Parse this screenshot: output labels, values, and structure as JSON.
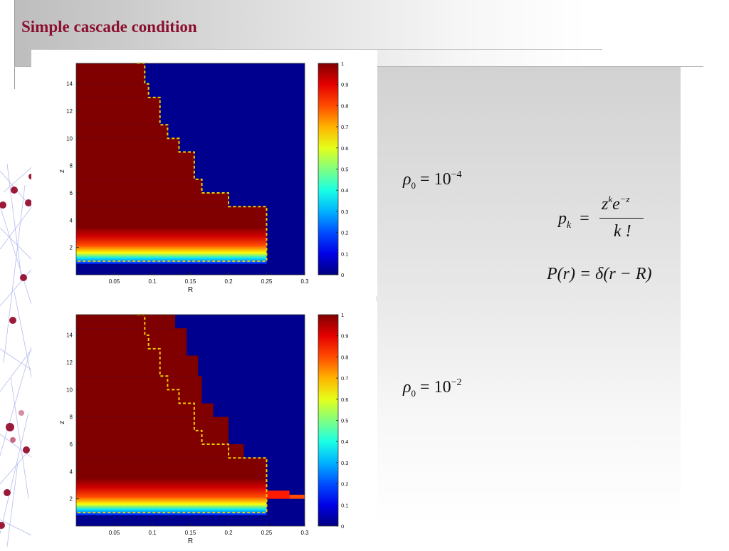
{
  "slide": {
    "title": "Simple cascade condition"
  },
  "equations": {
    "rho_top": {
      "symbol": "ρ",
      "sub": "0",
      "eq": "=",
      "base": "10",
      "exp": "−4"
    },
    "rho_bottom": {
      "symbol": "ρ",
      "sub": "0",
      "eq": "=",
      "base": "10",
      "exp": "−2"
    },
    "pk": {
      "lhs": "p",
      "lhs_sub": "k",
      "eq": "=",
      "numerator_z": "z",
      "numerator_k": "k",
      "numerator_e": "e",
      "numerator_exp": "−z",
      "denominator": "k !"
    },
    "pr": {
      "text": "P(r) = δ(r − R)"
    }
  },
  "colors": {
    "title": "#8b1030",
    "hot": "#800000",
    "cold": "#00008f",
    "boundary": "#f0d000"
  },
  "chart_data": [
    {
      "type": "heatmap",
      "title": "",
      "xlabel": "R",
      "ylabel": "z",
      "x_ticks": [
        "0.05",
        "0.1",
        "0.15",
        "0.2",
        "0.25",
        "0.3"
      ],
      "y_ticks": [
        "2",
        "4",
        "6",
        "8",
        "10",
        "12",
        "14"
      ],
      "xlim": [
        0,
        0.3
      ],
      "ylim": [
        0,
        15.5
      ],
      "colorbar_ticks": [
        "0",
        "0.1",
        "0.2",
        "0.3",
        "0.4",
        "0.5",
        "0.6",
        "0.7",
        "0.8",
        "0.9",
        "1"
      ],
      "clim": [
        0,
        1
      ],
      "cascade_region_steps": [
        {
          "z": 15.5,
          "R_max": 0.09
        },
        {
          "z": 15,
          "R_max": 0.09
        },
        {
          "z": 14,
          "R_max": 0.095
        },
        {
          "z": 13,
          "R_max": 0.11
        },
        {
          "z": 11,
          "R_max": 0.12
        },
        {
          "z": 10,
          "R_max": 0.135
        },
        {
          "z": 9,
          "R_max": 0.155
        },
        {
          "z": 7,
          "R_max": 0.165
        },
        {
          "z": 6,
          "R_max": 0.2
        },
        {
          "z": 5,
          "R_max": 0.25
        },
        {
          "z": 3.5,
          "R_max": 0.25
        }
      ],
      "boundary": [
        [
          0.08,
          15.5
        ],
        [
          0.09,
          15.5
        ],
        [
          0.09,
          14
        ],
        [
          0.095,
          14
        ],
        [
          0.095,
          13
        ],
        [
          0.11,
          13
        ],
        [
          0.11,
          11
        ],
        [
          0.12,
          11
        ],
        [
          0.12,
          10
        ],
        [
          0.135,
          10
        ],
        [
          0.135,
          9
        ],
        [
          0.155,
          9
        ],
        [
          0.155,
          7
        ],
        [
          0.165,
          7
        ],
        [
          0.165,
          6
        ],
        [
          0.2,
          6
        ],
        [
          0.2,
          5
        ],
        [
          0.25,
          5
        ],
        [
          0.25,
          1
        ],
        [
          0,
          1
        ]
      ]
    },
    {
      "type": "heatmap",
      "title": "",
      "xlabel": "R",
      "ylabel": "z",
      "x_ticks": [
        "0.05",
        "0.1",
        "0.15",
        "0.2",
        "0.25",
        "0.3"
      ],
      "y_ticks": [
        "2",
        "4",
        "6",
        "8",
        "10",
        "12",
        "14"
      ],
      "xlim": [
        0,
        0.3
      ],
      "ylim": [
        0,
        15.5
      ],
      "colorbar_ticks": [
        "0",
        "0.1",
        "0.2",
        "0.3",
        "0.4",
        "0.5",
        "0.6",
        "0.7",
        "0.8",
        "0.9",
        "1"
      ],
      "clim": [
        0,
        1
      ],
      "cascade_region_steps": [
        {
          "z": 15.5,
          "R_max": 0.13
        },
        {
          "z": 15,
          "R_max": 0.13
        },
        {
          "z": 14.5,
          "R_max": 0.145
        },
        {
          "z": 12.5,
          "R_max": 0.16
        },
        {
          "z": 11,
          "R_max": 0.165
        },
        {
          "z": 9,
          "R_max": 0.18
        },
        {
          "z": 8,
          "R_max": 0.2
        },
        {
          "z": 6,
          "R_max": 0.22
        },
        {
          "z": 5,
          "R_max": 0.25
        },
        {
          "z": 3.5,
          "R_max": 0.25
        }
      ],
      "boundary": [
        [
          0.08,
          15.5
        ],
        [
          0.09,
          15.5
        ],
        [
          0.09,
          14
        ],
        [
          0.095,
          14
        ],
        [
          0.095,
          13
        ],
        [
          0.11,
          13
        ],
        [
          0.11,
          11
        ],
        [
          0.12,
          11
        ],
        [
          0.12,
          10
        ],
        [
          0.135,
          10
        ],
        [
          0.135,
          9
        ],
        [
          0.155,
          9
        ],
        [
          0.155,
          7
        ],
        [
          0.165,
          7
        ],
        [
          0.165,
          6
        ],
        [
          0.2,
          6
        ],
        [
          0.2,
          5
        ],
        [
          0.25,
          5
        ],
        [
          0.25,
          1
        ],
        [
          0,
          1
        ]
      ]
    }
  ]
}
